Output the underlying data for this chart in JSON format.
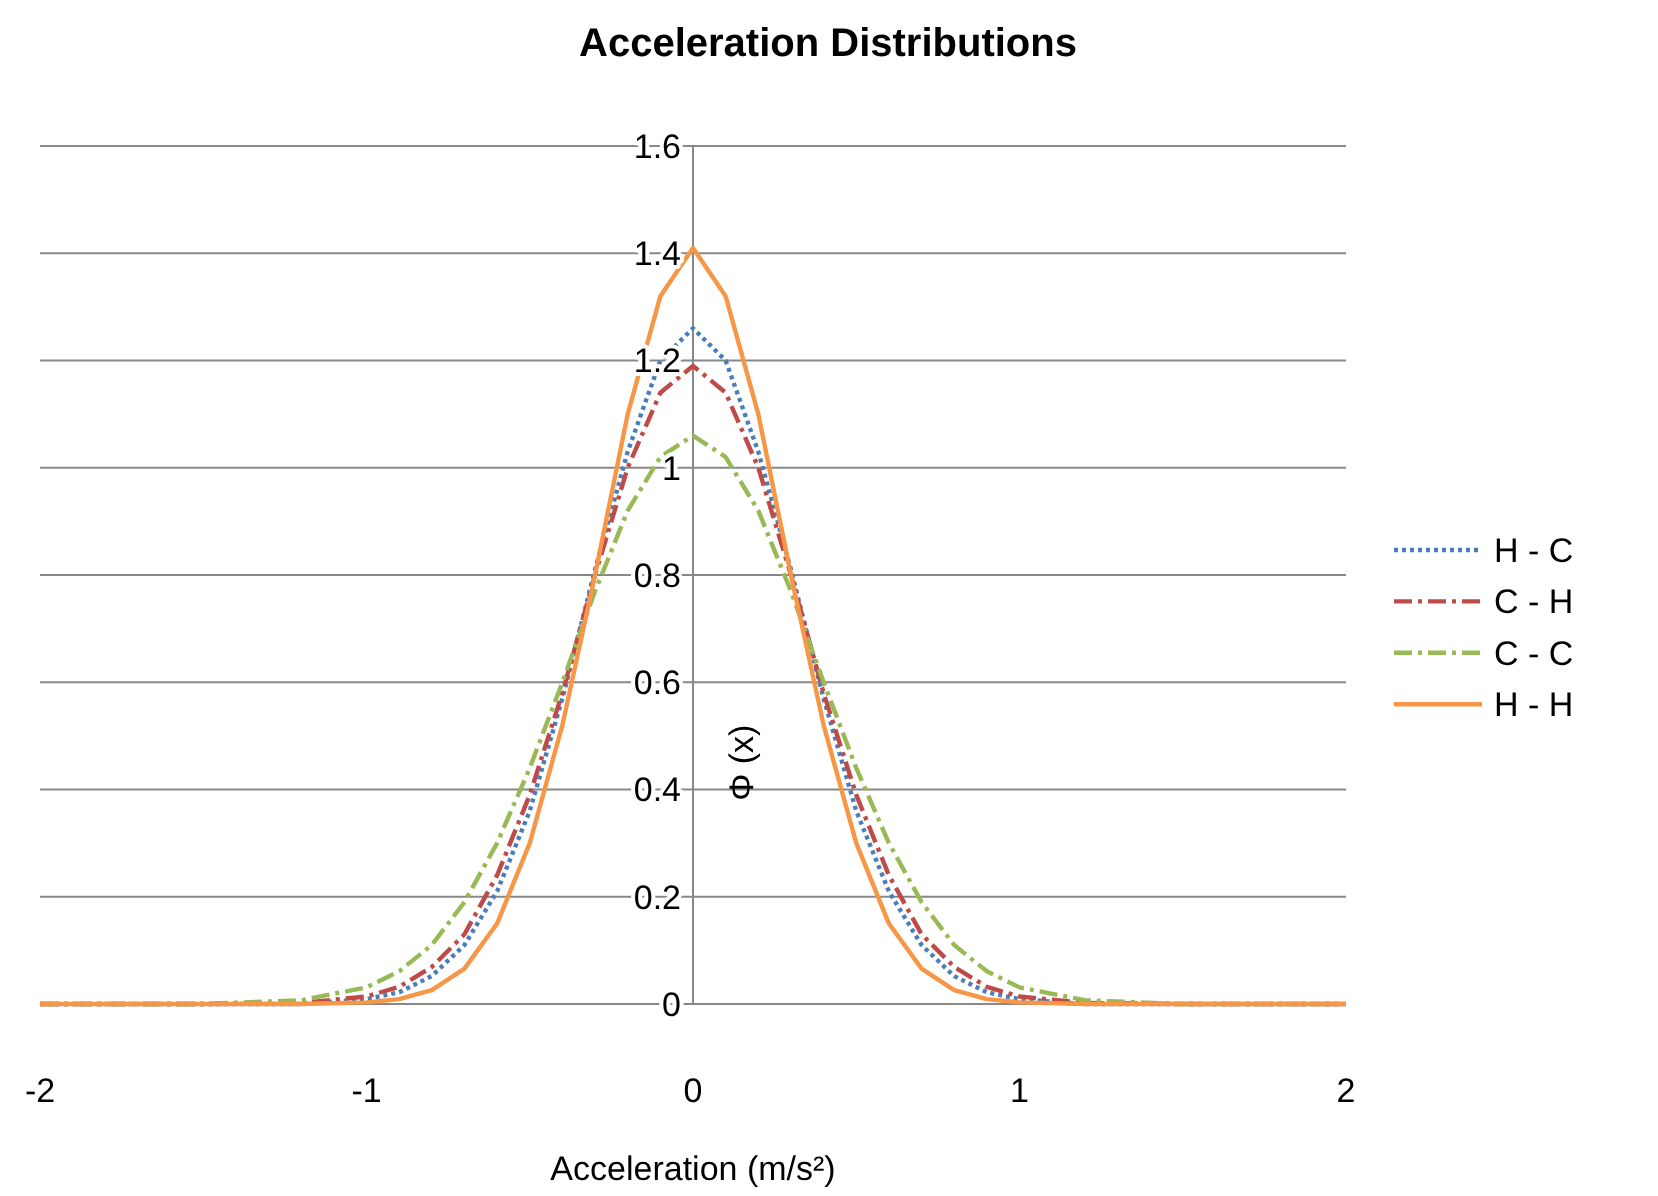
{
  "chart_data": {
    "type": "line",
    "title": "Acceleration Distributions",
    "xlabel": "Acceleration (m/s²)",
    "ylabel": "Φ (x)",
    "x": [
      -2,
      -1.5,
      -1.2,
      -1,
      -0.9,
      -0.8,
      -0.7,
      -0.6,
      -0.5,
      -0.4,
      -0.3,
      -0.2,
      -0.1,
      0,
      0.1,
      0.2,
      0.3,
      0.4,
      0.5,
      0.6,
      0.7,
      0.8,
      0.9,
      1,
      1.2,
      1.5,
      2
    ],
    "xlim": [
      -2,
      2
    ],
    "xticks": [
      -2,
      -1,
      0,
      1,
      2
    ],
    "ylim": [
      0,
      1.6
    ],
    "yticks": [
      0,
      0.2,
      0.4,
      0.6,
      0.8,
      1,
      1.2,
      1.4,
      1.6
    ],
    "grid": "y",
    "legend": "right",
    "series": [
      {
        "name": "H - C",
        "color": "#4a7ebb",
        "line_style": "dotted",
        "values": [
          0,
          0,
          0,
          0.009,
          0.022,
          0.052,
          0.11,
          0.21,
          0.36,
          0.57,
          0.81,
          1.03,
          1.2,
          1.26,
          1.2,
          1.03,
          0.81,
          0.57,
          0.36,
          0.21,
          0.11,
          0.052,
          0.022,
          0.009,
          0,
          0,
          0
        ]
      },
      {
        "name": "C - H",
        "color": "#be4b48",
        "line_style": "dashed",
        "values": [
          0,
          0,
          0.002,
          0.014,
          0.032,
          0.069,
          0.13,
          0.24,
          0.39,
          0.58,
          0.8,
          1,
          1.14,
          1.19,
          1.14,
          1,
          0.8,
          0.58,
          0.39,
          0.24,
          0.13,
          0.069,
          0.032,
          0.014,
          0.002,
          0,
          0
        ]
      },
      {
        "name": "C - C",
        "color": "#98b954",
        "line_style": "dashed",
        "values": [
          0,
          0,
          0.007,
          0.031,
          0.061,
          0.11,
          0.19,
          0.3,
          0.44,
          0.6,
          0.77,
          0.92,
          1.02,
          1.06,
          1.02,
          0.92,
          0.77,
          0.6,
          0.44,
          0.3,
          0.19,
          0.11,
          0.061,
          0.031,
          0.007,
          0,
          0
        ]
      },
      {
        "name": "H - H",
        "color": "#f79646",
        "line_style": "solid",
        "values": [
          0,
          0,
          0,
          0.003,
          0.009,
          0.026,
          0.066,
          0.15,
          0.3,
          0.52,
          0.8,
          1.1,
          1.32,
          1.41,
          1.32,
          1.1,
          0.8,
          0.52,
          0.3,
          0.15,
          0.066,
          0.026,
          0.009,
          0.003,
          0,
          0,
          0
        ]
      }
    ]
  }
}
